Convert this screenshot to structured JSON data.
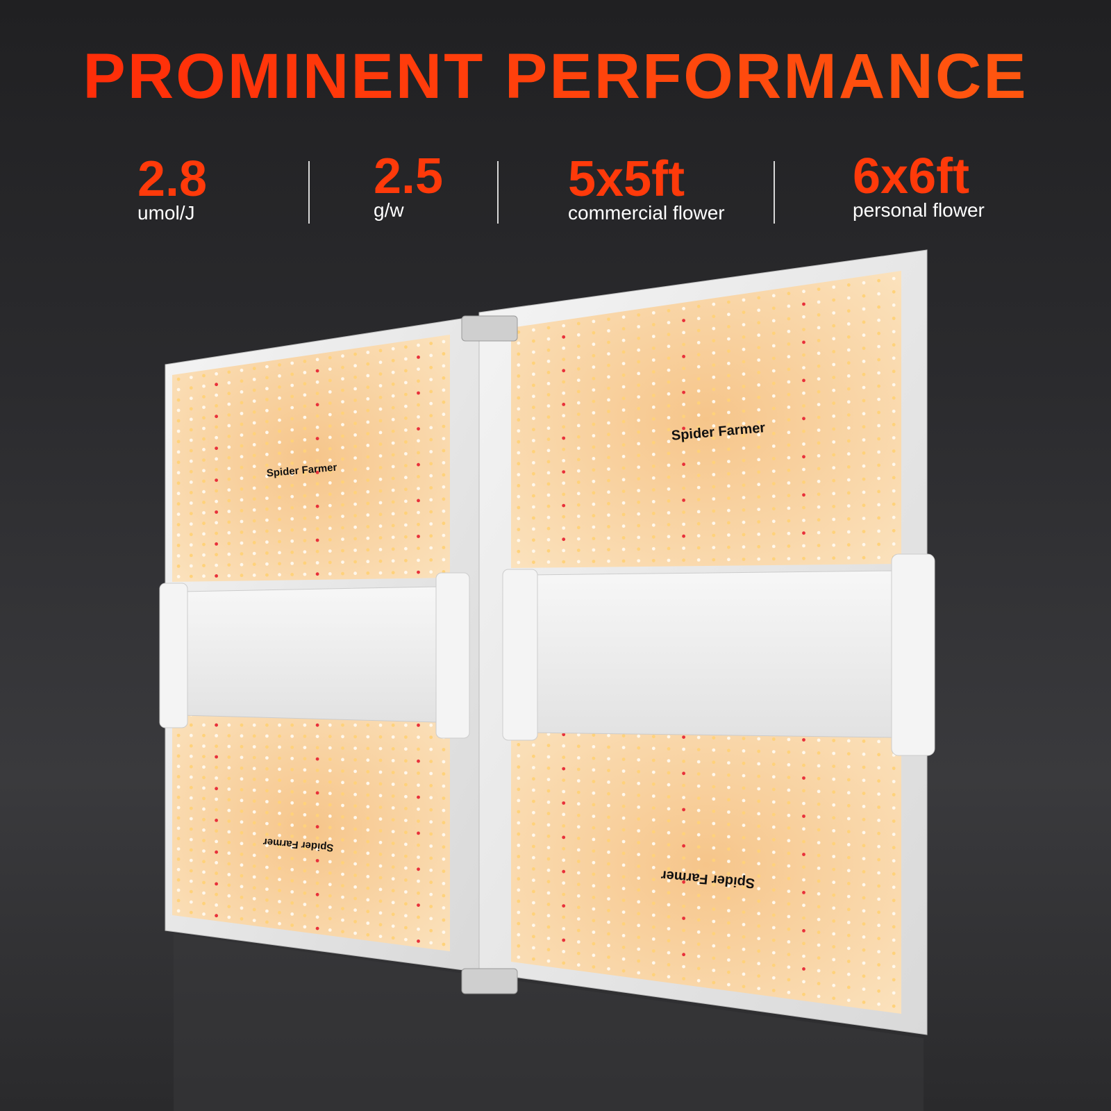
{
  "headline": "PROMINENT PERFORMANCE",
  "stats": [
    {
      "value": "2.8",
      "unit": "umol/J"
    },
    {
      "value": "2.5",
      "unit": "g/w"
    },
    {
      "value": "5x5ft",
      "unit": "commercial flower"
    },
    {
      "value": "6x6ft",
      "unit": "personal flower"
    }
  ],
  "brand_logo": "Spider Farmer",
  "colors": {
    "accent": "#ff3a0a",
    "background": "#2b2b2e",
    "board": "#f7c98a",
    "led_red": "#e8303a"
  }
}
